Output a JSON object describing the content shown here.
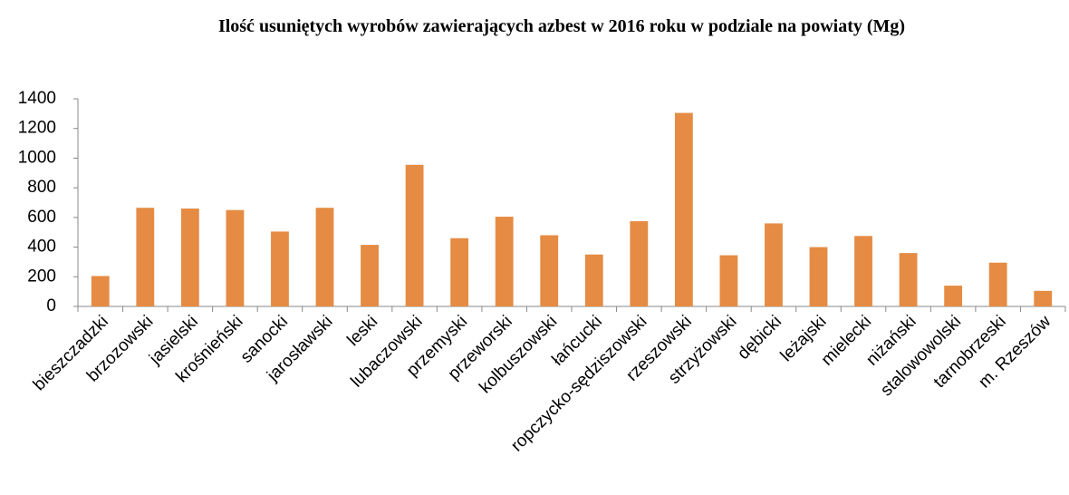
{
  "chart_data": {
    "type": "bar",
    "title": "Ilość usuniętych wyrobów zawierających azbest w 2016 roku w podziale na powiaty (Mg)",
    "categories": [
      "bieszczadzki",
      "brzozowski",
      "jasielski",
      "krośnieński",
      "sanocki",
      "jarosławski",
      "leski",
      "lubaczowski",
      "przemyski",
      "przeworski",
      "kolbuszowski",
      "łańcucki",
      "ropczycko-sędziszowski",
      "rzeszowski",
      "strzyżowski",
      "dębicki",
      "leżajski",
      "mielecki",
      "niżański",
      "stalowowolski",
      "tarnobrzeski",
      "m. Rzeszów"
    ],
    "values": [
      205,
      665,
      660,
      650,
      505,
      665,
      415,
      955,
      460,
      605,
      480,
      350,
      575,
      1305,
      345,
      560,
      400,
      475,
      360,
      140,
      295,
      105
    ],
    "color": "#e58b43",
    "ylim": [
      0,
      1400
    ],
    "yticks": [
      0,
      200,
      400,
      600,
      800,
      1000,
      1200,
      1400
    ],
    "grid": false
  }
}
